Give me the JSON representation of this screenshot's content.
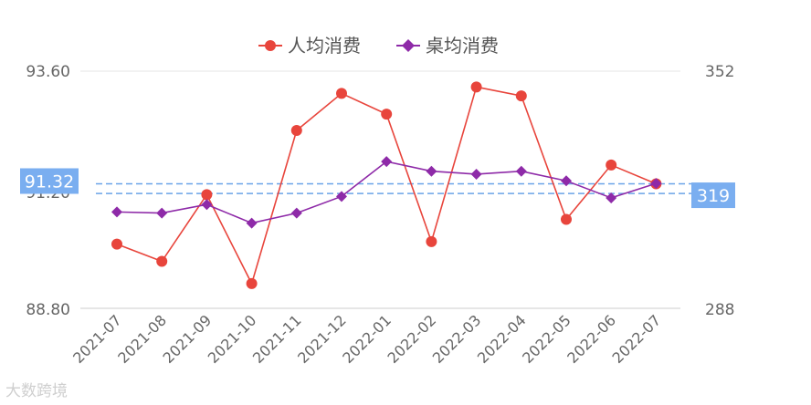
{
  "chart_data": {
    "type": "line",
    "categories": [
      "2021-07",
      "2021-08",
      "2021-09",
      "2021-10",
      "2021-11",
      "2021-12",
      "2022-01",
      "2022-02",
      "2022-03",
      "2022-04",
      "2022-05",
      "2022-06",
      "2022-07"
    ],
    "series": [
      {
        "name": "人均消费",
        "axis": "left",
        "color": "#e8453c",
        "marker": "circle",
        "values": [
          90.1,
          89.75,
          91.1,
          89.3,
          92.4,
          93.15,
          92.73,
          90.15,
          93.28,
          93.1,
          90.6,
          91.7,
          91.32
        ]
      },
      {
        "name": "桌均消费",
        "axis": "right",
        "color": "#8e2aa8",
        "marker": "diamond",
        "values": [
          314,
          313.7,
          316,
          311,
          313.7,
          318.2,
          327.6,
          325,
          324.2,
          325,
          322.4,
          317.8,
          321.7
        ]
      }
    ],
    "y_left": {
      "min": 88.8,
      "max": 93.6,
      "ticks": [
        "88.80",
        "93.60"
      ],
      "partial_tick": "91.20"
    },
    "y_right": {
      "min": 288,
      "max": 352,
      "ticks": [
        "288",
        "352"
      ]
    },
    "markLines": {
      "left": {
        "value": 91.32,
        "label": "91.32",
        "color": "#6aa3e8"
      },
      "right": {
        "value": 319,
        "label": "319",
        "color": "#6aa3e8"
      }
    },
    "legend": "top-center",
    "grid": false
  },
  "watermark": "大数跨境"
}
